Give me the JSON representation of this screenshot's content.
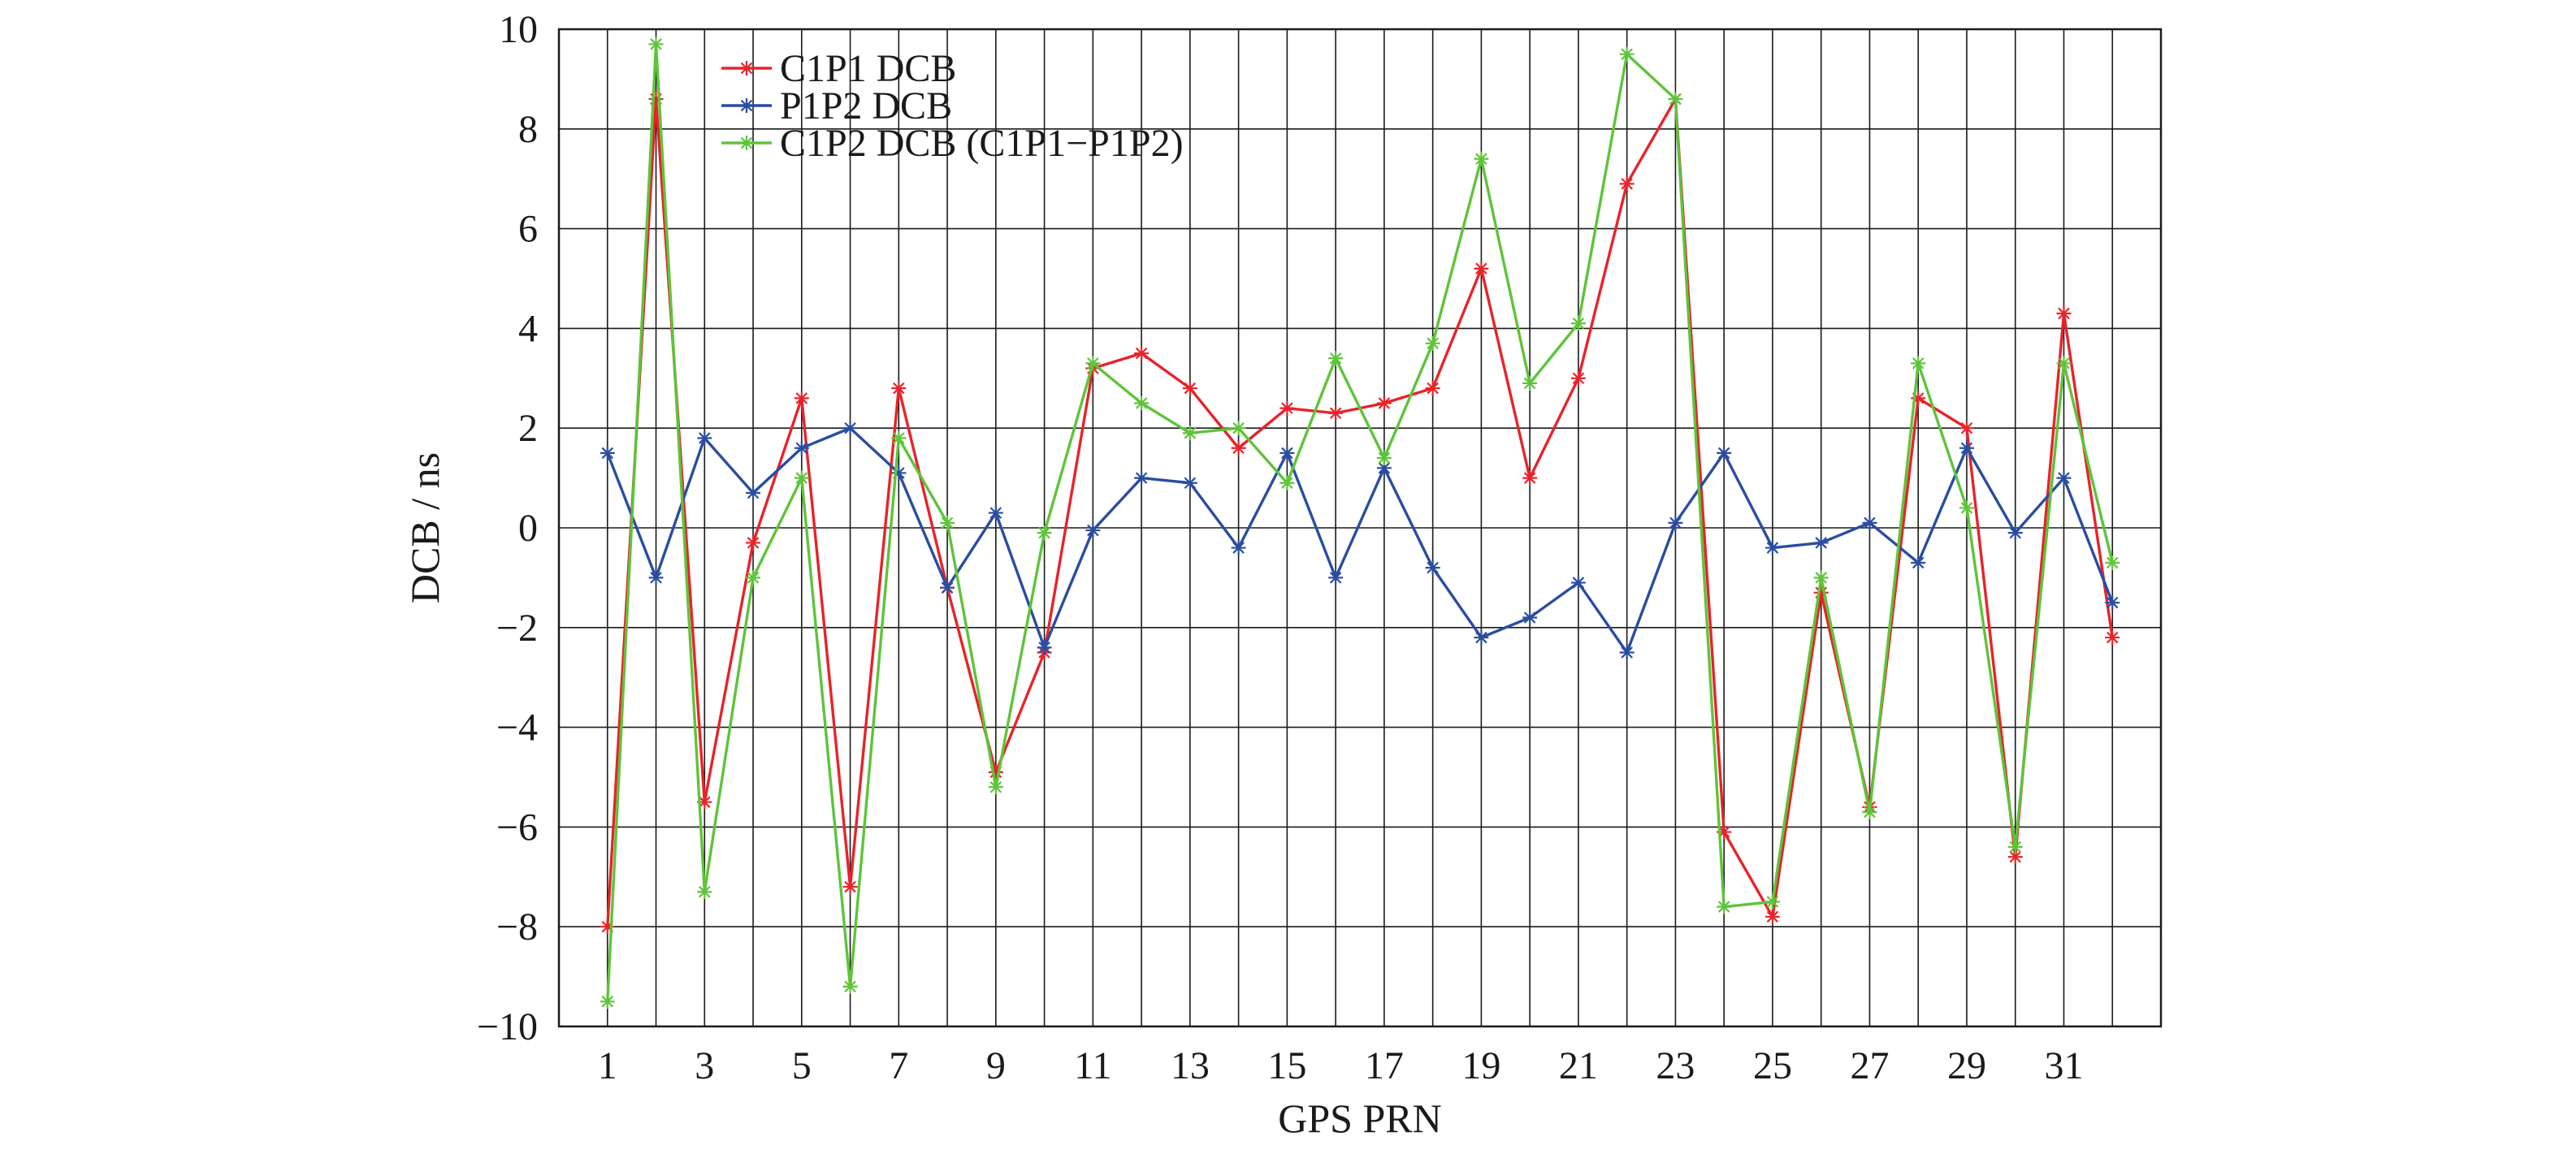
{
  "chart_data": {
    "type": "line",
    "xlabel": "GPS PRN",
    "ylabel": "DCB / ns",
    "xlim": [
      0,
      33
    ],
    "ylim": [
      -10,
      10
    ],
    "x_tick_labels": [
      "1",
      "3",
      "5",
      "7",
      "9",
      "11",
      "13",
      "15",
      "17",
      "19",
      "21",
      "23",
      "25",
      "27",
      "29",
      "31"
    ],
    "y_tick_labels": [
      "10",
      "8",
      "6",
      "4",
      "2",
      "0",
      "−2",
      "−4",
      "−6",
      "−8",
      "−10"
    ],
    "grid": true,
    "legend_position": "top-left",
    "x": [
      1,
      2,
      3,
      4,
      5,
      6,
      7,
      8,
      9,
      10,
      11,
      12,
      13,
      14,
      15,
      16,
      17,
      18,
      19,
      20,
      21,
      22,
      23,
      24,
      25,
      26,
      27,
      28,
      29,
      30,
      31,
      32
    ],
    "series": [
      {
        "name": "C1P1 DCB",
        "color": "#e8232a",
        "marker": "asterisk",
        "values": [
          -8.0,
          8.6,
          -5.5,
          -0.3,
          2.6,
          -7.2,
          2.8,
          -1.2,
          -4.9,
          -2.5,
          3.2,
          3.5,
          2.8,
          1.6,
          2.4,
          2.3,
          2.5,
          2.8,
          5.2,
          1.0,
          3.0,
          6.9,
          8.6,
          -6.1,
          -7.8,
          -1.3,
          -5.6,
          2.6,
          2.0,
          -6.6,
          4.3,
          -2.2
        ]
      },
      {
        "name": "P1P2 DCB",
        "color": "#2a4da0",
        "marker": "asterisk",
        "values": [
          1.5,
          -1.0,
          1.8,
          0.7,
          1.6,
          2.0,
          1.1,
          -1.2,
          0.3,
          -2.4,
          -0.05,
          1.0,
          0.9,
          -0.4,
          1.5,
          -1.0,
          1.2,
          -0.8,
          -2.2,
          -1.8,
          -1.1,
          -2.5,
          0.1,
          1.5,
          -0.4,
          -0.3,
          0.1,
          -0.7,
          1.6,
          -0.1,
          1.0,
          -1.5
        ]
      },
      {
        "name": "C1P2 DCB (C1P1−P1P2)",
        "color": "#5ec43a",
        "marker": "asterisk",
        "values": [
          -9.5,
          9.7,
          -7.3,
          -1.0,
          1.0,
          -9.2,
          1.8,
          0.1,
          -5.2,
          -0.1,
          3.3,
          2.5,
          1.9,
          2.0,
          0.9,
          3.4,
          1.4,
          3.7,
          7.4,
          2.9,
          4.1,
          9.5,
          8.6,
          -7.6,
          -7.5,
          -1.0,
          -5.7,
          3.3,
          0.4,
          -6.4,
          3.3,
          -0.7
        ]
      }
    ]
  }
}
